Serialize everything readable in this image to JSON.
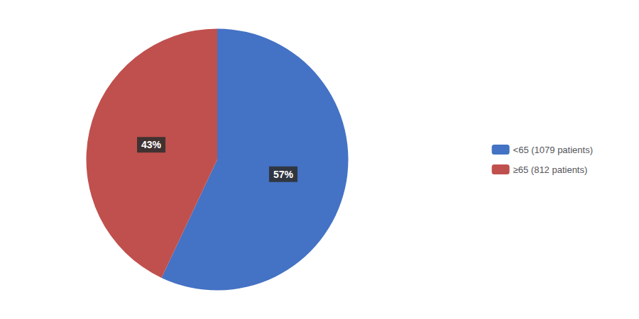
{
  "chart_data": {
    "type": "pie",
    "categories": [
      "<65 (1079 patients)",
      "≥65 (812 patients)"
    ],
    "values": [
      57,
      43
    ],
    "value_labels": [
      "57%",
      "43%"
    ],
    "colors": [
      "#4472C4",
      "#C0504D"
    ],
    "data_labels": true,
    "legend": "right"
  }
}
